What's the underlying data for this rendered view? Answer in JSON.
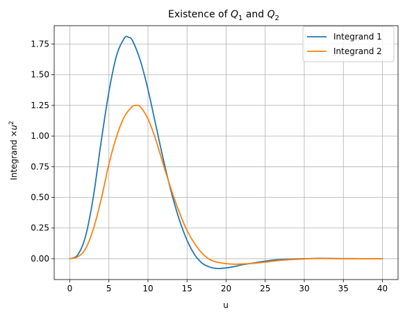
{
  "chart_data": {
    "type": "line",
    "title": "Existence of Q1 and Q2",
    "title_parts": {
      "prefix": "Existence of ",
      "v1": "Q",
      "s1": "1",
      "mid": " and ",
      "v2": "Q",
      "s2": "2"
    },
    "xlabel": "u",
    "ylabel": "Integrand ×u²",
    "ylabel_parts": {
      "prefix": "Integrand ×",
      "var": "u",
      "sup": "2"
    },
    "xlim": [
      -2,
      42
    ],
    "ylim": [
      -0.17,
      1.9
    ],
    "xticks": [
      0,
      5,
      10,
      15,
      20,
      25,
      30,
      35,
      40
    ],
    "xtick_labels": [
      "0",
      "5",
      "10",
      "15",
      "20",
      "25",
      "30",
      "35",
      "40"
    ],
    "yticks": [
      0.0,
      0.25,
      0.5,
      0.75,
      1.0,
      1.25,
      1.5,
      1.75
    ],
    "ytick_labels": [
      "0.00",
      "0.25",
      "0.50",
      "0.75",
      "1.00",
      "1.25",
      "1.50",
      "1.75"
    ],
    "grid": true,
    "legend_position": "top-right",
    "series": [
      {
        "name": "Integrand 1",
        "color": "#1f77b4",
        "x": [
          0,
          1,
          2,
          3,
          4,
          5,
          6,
          7,
          7.5,
          8,
          9,
          10,
          11,
          12,
          13,
          14,
          15,
          16,
          17,
          18,
          19,
          20,
          21,
          22,
          23,
          24,
          25,
          26,
          27,
          28,
          30,
          32,
          35,
          40
        ],
        "y": [
          0,
          0.03,
          0.18,
          0.5,
          0.95,
          1.36,
          1.66,
          1.8,
          1.805,
          1.78,
          1.62,
          1.38,
          1.09,
          0.8,
          0.54,
          0.32,
          0.15,
          0.03,
          -0.04,
          -0.07,
          -0.08,
          -0.075,
          -0.065,
          -0.05,
          -0.04,
          -0.03,
          -0.02,
          -0.012,
          -0.007,
          -0.003,
          0.0,
          0.003,
          0.001,
          0.0
        ]
      },
      {
        "name": "Integrand 2",
        "color": "#ff7f0e",
        "x": [
          0,
          1,
          2,
          3,
          4,
          5,
          6,
          7,
          8,
          8.5,
          9,
          10,
          11,
          12,
          13,
          14,
          15,
          16,
          17,
          18,
          19,
          20,
          21,
          22,
          23,
          24,
          25,
          26,
          27,
          28,
          30,
          32,
          35,
          40
        ],
        "y": [
          0,
          0.015,
          0.08,
          0.24,
          0.48,
          0.77,
          1.0,
          1.16,
          1.24,
          1.25,
          1.24,
          1.14,
          0.97,
          0.76,
          0.56,
          0.38,
          0.23,
          0.12,
          0.04,
          -0.01,
          -0.03,
          -0.04,
          -0.045,
          -0.043,
          -0.04,
          -0.035,
          -0.028,
          -0.02,
          -0.013,
          -0.008,
          -0.002,
          0.001,
          0.0,
          0.0
        ]
      }
    ]
  }
}
